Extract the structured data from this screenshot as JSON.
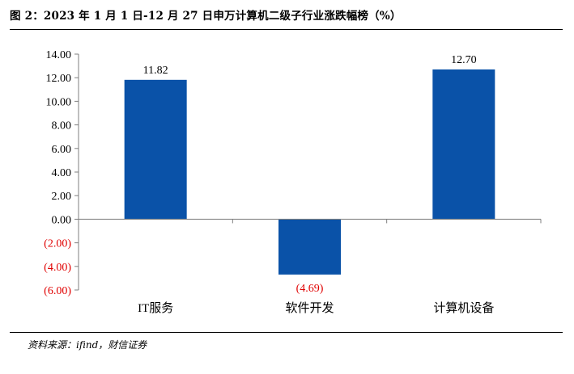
{
  "figure": {
    "title": "图 2：2023 年 1 月 1 日-12 月 27 日申万计算机二级子行业涨跌幅榜（%）",
    "source": "资料来源：ifind，财信证券",
    "negative_color": "#e00000",
    "bar_color": "#0a52a8"
  },
  "chart_data": {
    "type": "bar",
    "categories": [
      "IT服务",
      "软件开发",
      "计算机设备"
    ],
    "values": [
      11.82,
      -4.69,
      12.7
    ],
    "value_labels": [
      "11.82",
      "(4.69)",
      "12.70"
    ],
    "title": "",
    "xlabel": "",
    "ylabel": "",
    "ylim": [
      -6,
      14
    ],
    "yticks": [
      14,
      12,
      10,
      8,
      6,
      4,
      2,
      0,
      -2,
      -4,
      -6
    ],
    "ytick_labels": [
      "14.00",
      "12.00",
      "10.00",
      "8.00",
      "6.00",
      "4.00",
      "2.00",
      "0.00",
      "(2.00)",
      "(4.00)",
      "(6.00)"
    ],
    "grid": false,
    "legend": "none"
  }
}
